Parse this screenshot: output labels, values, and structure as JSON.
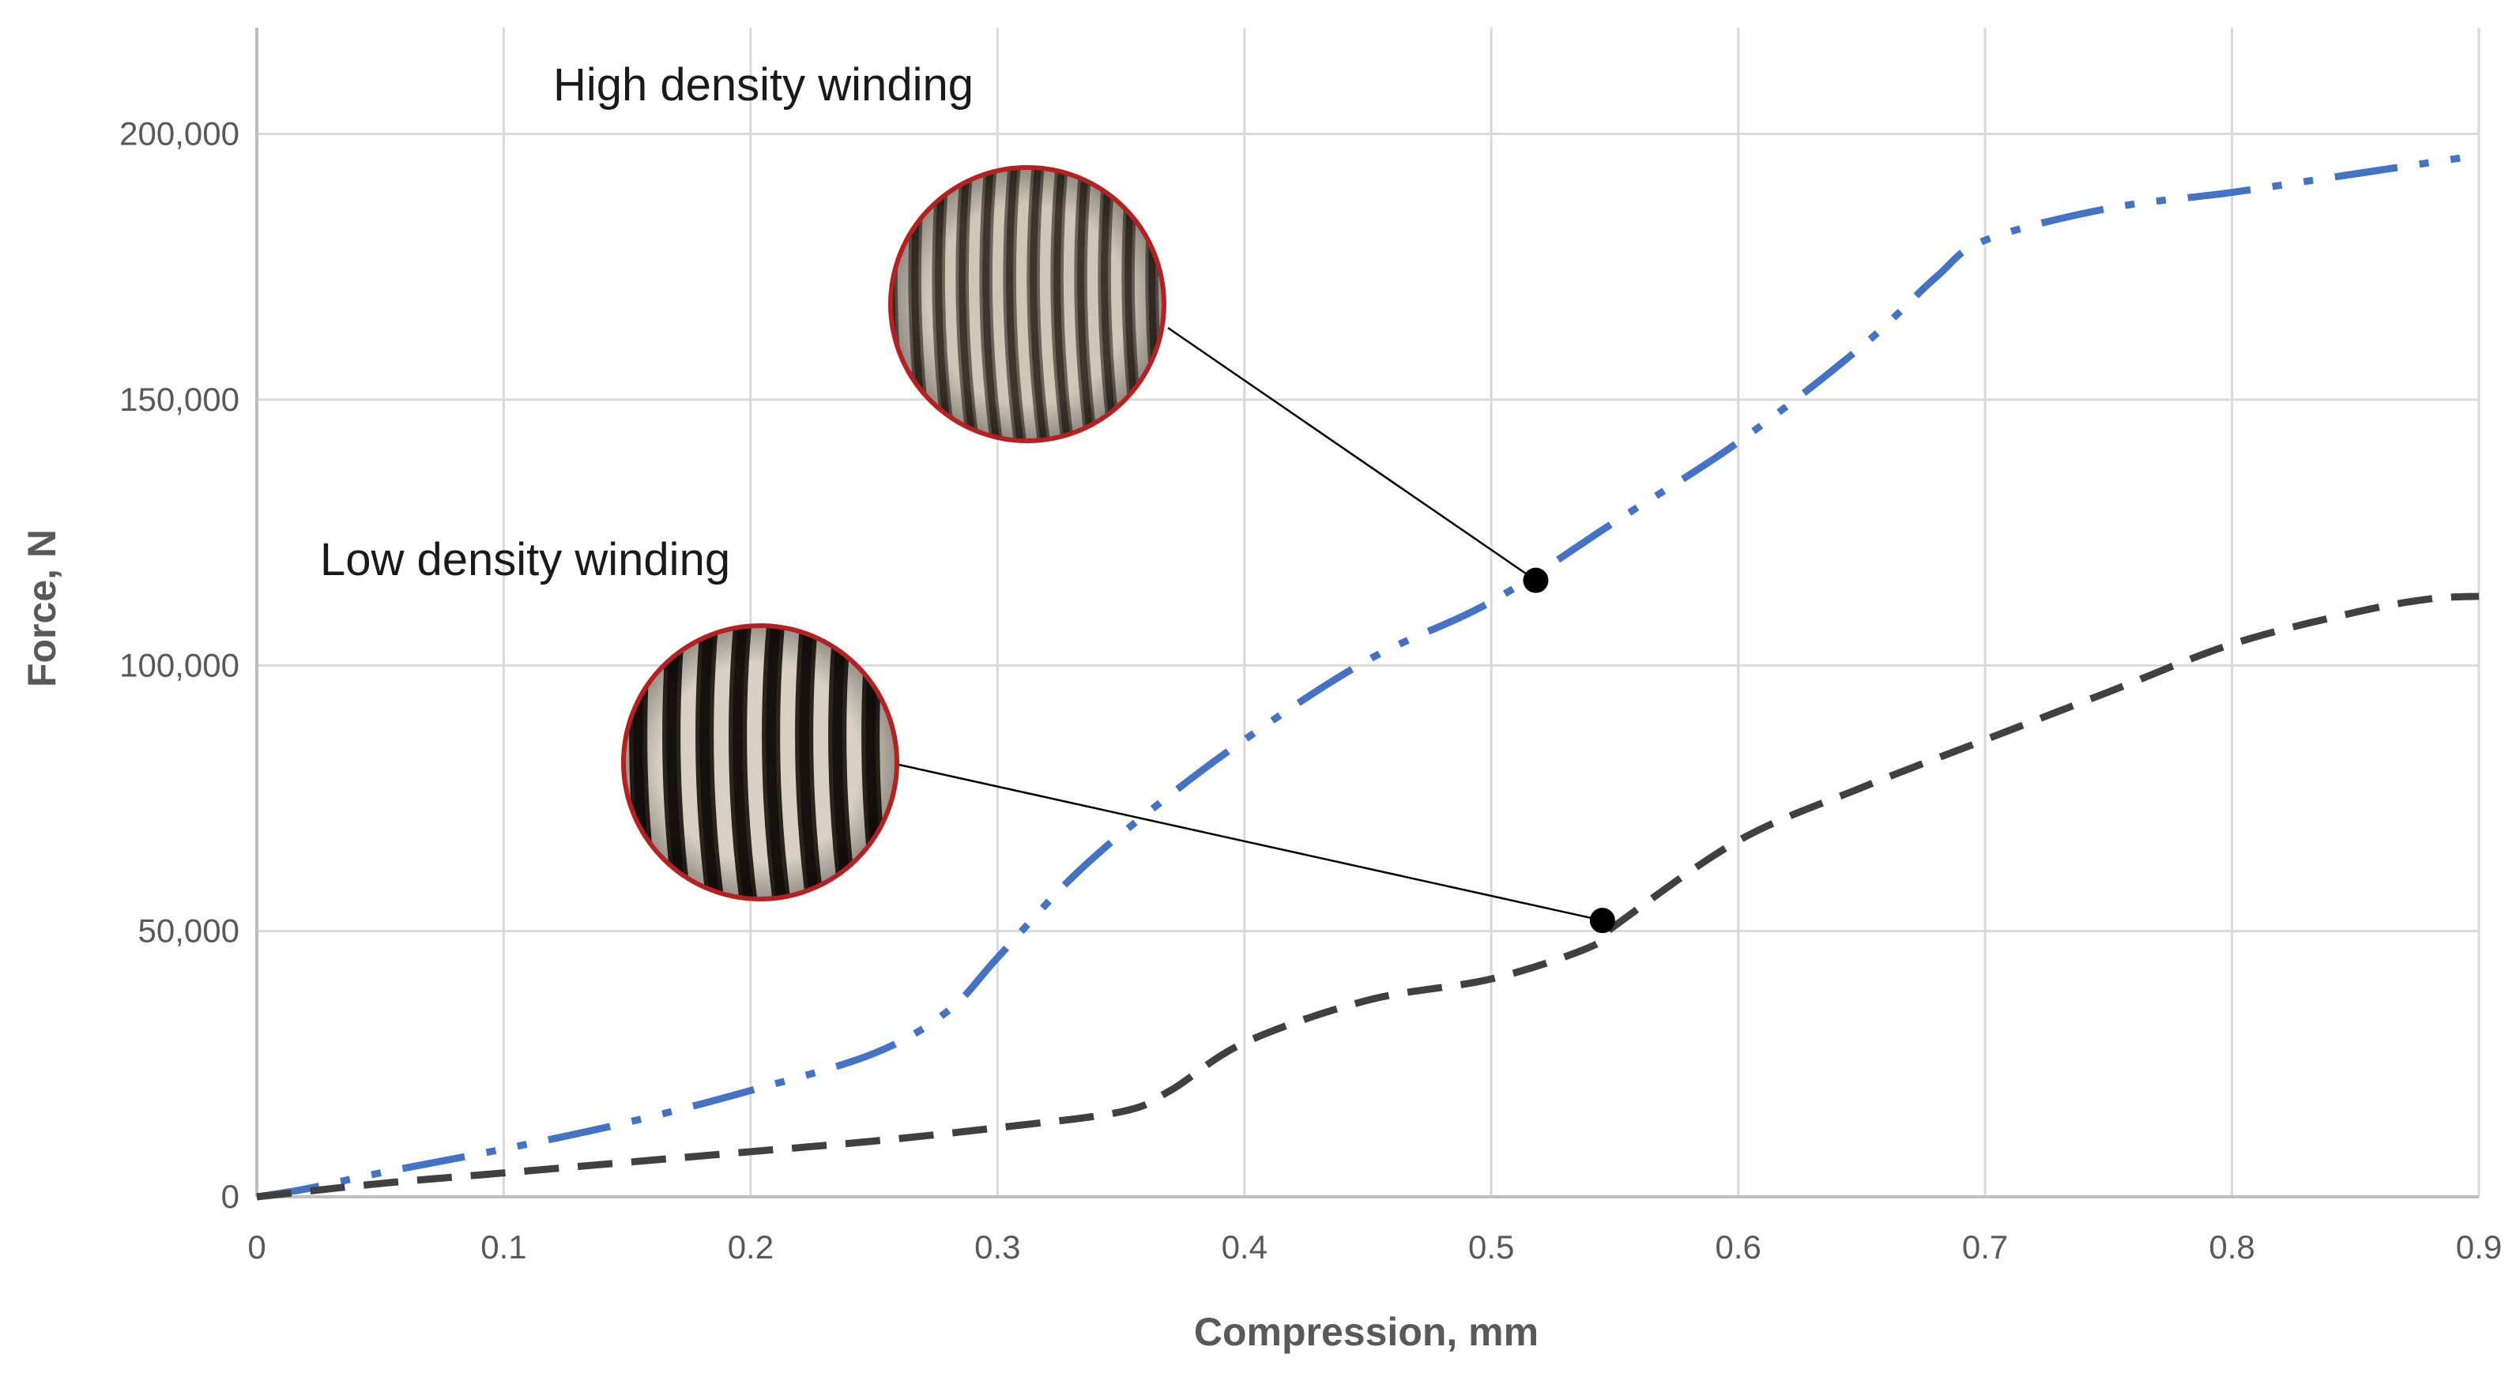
{
  "chart_data": {
    "type": "line",
    "xlabel": "Compression, mm",
    "ylabel": "Force, N",
    "xlim": [
      0,
      0.9
    ],
    "ylim": [
      0,
      220000
    ],
    "x_ticks": [
      "0",
      "0.1",
      "0.2",
      "0.3",
      "0.4",
      "0.5",
      "0.6",
      "0.7",
      "0.8",
      "0.9"
    ],
    "x_tick_values": [
      0,
      0.1,
      0.2,
      0.3,
      0.4,
      0.5,
      0.6,
      0.7,
      0.8,
      0.9
    ],
    "y_ticks": [
      "0",
      "50,000",
      "100,000",
      "150,000",
      "200,000"
    ],
    "y_tick_values": [
      0,
      50000,
      100000,
      150000,
      200000
    ],
    "grid": true,
    "series": [
      {
        "color": "#4472c4",
        "dash": "dash-dot-dot",
        "x": [
          0,
          0.02,
          0.05,
          0.1,
          0.15,
          0.2,
          0.25,
          0.28,
          0.3,
          0.33,
          0.36,
          0.4,
          0.45,
          0.5,
          0.55,
          0.6,
          0.65,
          0.68,
          0.7,
          0.75,
          0.8,
          0.85,
          0.9
        ],
        "y": [
          0,
          1500,
          4500,
          9000,
          14000,
          20000,
          27000,
          35000,
          45000,
          60000,
          72000,
          86000,
          101000,
          112000,
          127000,
          142000,
          160000,
          173000,
          180000,
          186000,
          189000,
          192500,
          196000
        ]
      },
      {
        "color": "#404040",
        "dash": "dashed",
        "x": [
          0,
          0.05,
          0.1,
          0.15,
          0.2,
          0.25,
          0.3,
          0.35,
          0.37,
          0.4,
          0.45,
          0.5,
          0.54,
          0.55,
          0.6,
          0.65,
          0.7,
          0.75,
          0.8,
          0.85,
          0.88,
          0.9
        ],
        "y": [
          0,
          2500,
          4500,
          6500,
          8500,
          10500,
          13000,
          16000,
          20000,
          29000,
          37000,
          41000,
          47000,
          51000,
          67000,
          77000,
          86000,
          95000,
          104000,
          110000,
          112500,
          113000
        ]
      }
    ],
    "annotations": [
      {
        "text": "High density winding",
        "marker": {
          "x": 0.518,
          "y": 116000
        }
      },
      {
        "text": "Low density winding",
        "marker": {
          "x": 0.545,
          "y": 52000
        }
      }
    ]
  }
}
